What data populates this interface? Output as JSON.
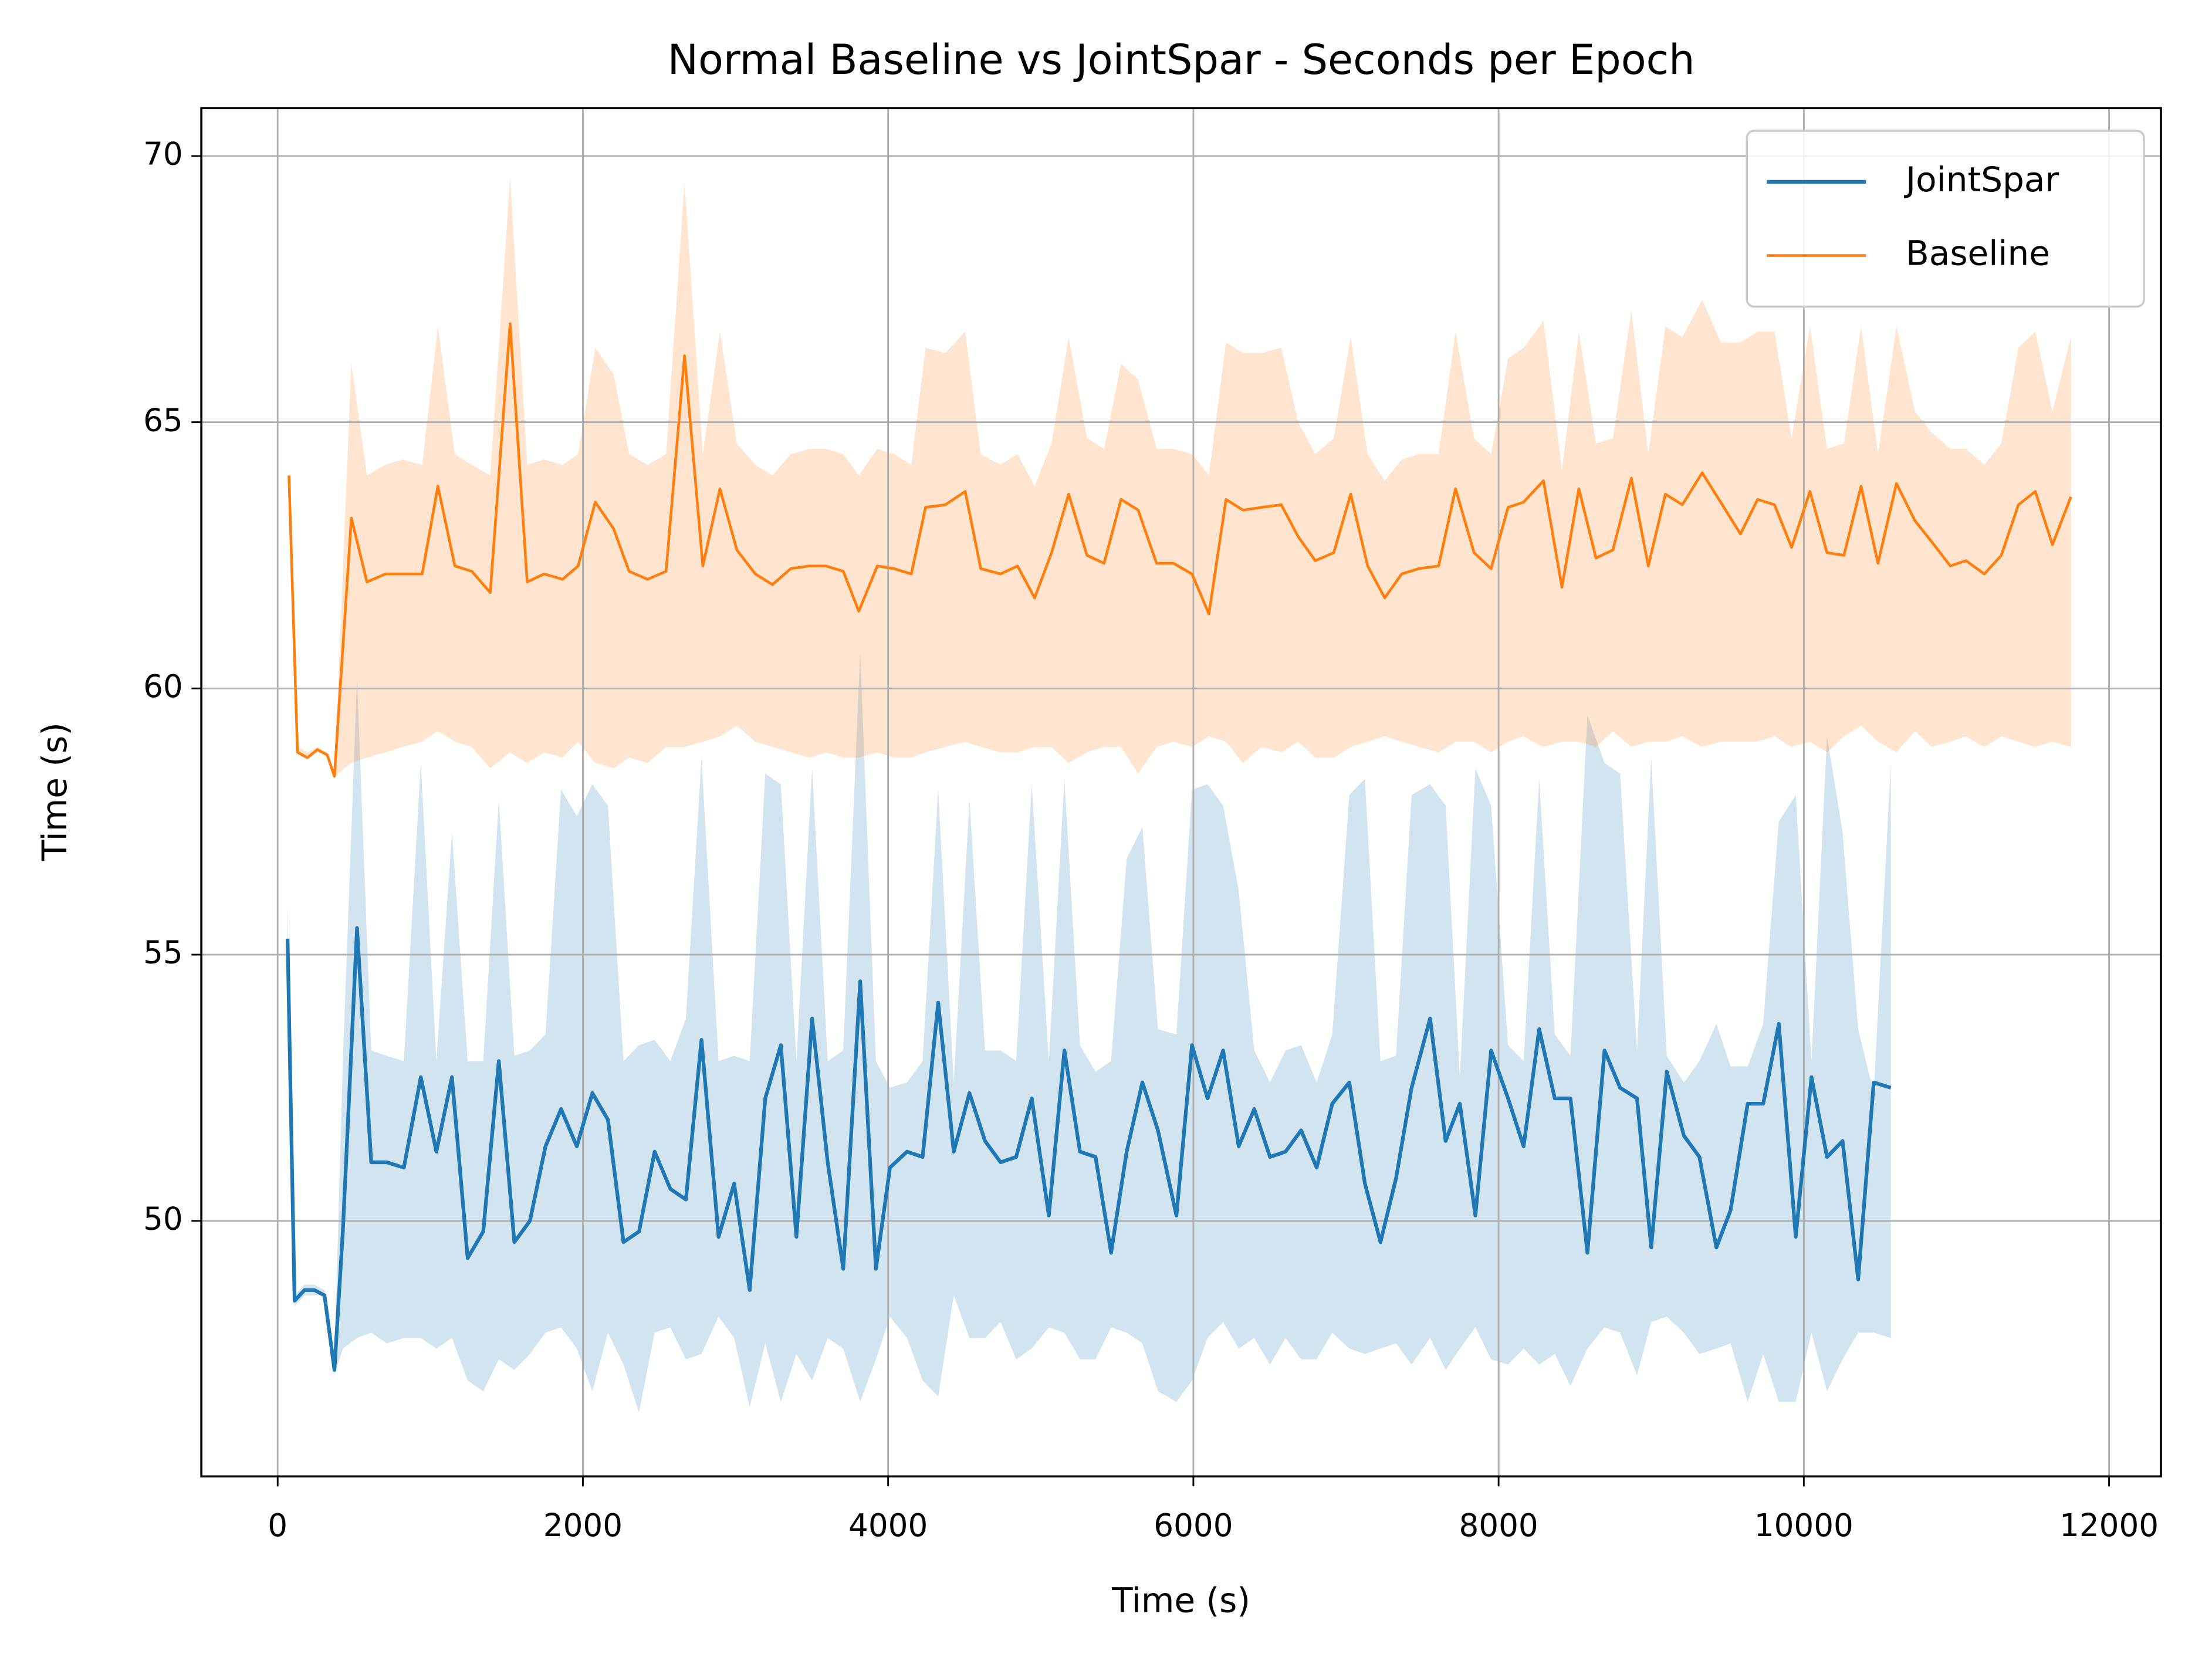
{
  "chart_data": {
    "type": "line",
    "title": "Normal Baseline vs JointSpar - Seconds per Epoch",
    "x_label": "Time (s)",
    "y_label": "Time (s)",
    "xlim": [
      -500,
      12340
    ],
    "ylim": [
      45.2,
      70.9
    ],
    "xticks": [
      0,
      2000,
      4000,
      6000,
      8000,
      10000,
      12000
    ],
    "yticks": [
      50,
      55,
      60,
      65,
      70
    ],
    "grid": true,
    "legend": "upper right",
    "series": [
      {
        "name": "JointSpar",
        "color": "#1f77b4",
        "x": [
          65,
          111,
          176,
          241,
          307,
          372,
          427,
          520,
          613,
          715,
          827,
          938,
          1040,
          1142,
          1245,
          1347,
          1449,
          1551,
          1653,
          1755,
          1857,
          1960,
          2062,
          2164,
          2266,
          2368,
          2470,
          2573,
          2675,
          2777,
          2889,
          2991,
          3093,
          3195,
          3297,
          3399,
          3502,
          3604,
          3706,
          3817,
          3920,
          4012,
          4124,
          4226,
          4328,
          4430,
          4533,
          4635,
          4737,
          4839,
          4941,
          5053,
          5155,
          5257,
          5359,
          5461,
          5563,
          5666,
          5768,
          5889,
          5991,
          6093,
          6195,
          6297,
          6399,
          6502,
          6604,
          6706,
          6808,
          6910,
          7022,
          7124,
          7226,
          7328,
          7430,
          7551,
          7653,
          7746,
          7848,
          7951,
          8062,
          8164,
          8266,
          8368,
          8471,
          8582,
          8694,
          8796,
          8907,
          9000,
          9102,
          9214,
          9316,
          9427,
          9520,
          9632,
          9734,
          9836,
          9947,
          10050,
          10152,
          10254,
          10356,
          10458,
          10570
        ],
        "values": [
          55.3,
          48.5,
          48.7,
          48.7,
          48.6,
          47.2,
          49.8,
          55.5,
          51.1,
          51.1,
          51.0,
          52.7,
          51.3,
          52.7,
          49.3,
          49.8,
          53.0,
          49.6,
          50.0,
          51.4,
          52.1,
          51.4,
          52.4,
          51.9,
          49.6,
          49.8,
          51.3,
          50.6,
          50.4,
          53.4,
          49.7,
          50.7,
          48.7,
          52.3,
          53.3,
          49.7,
          53.8,
          51.1,
          49.1,
          54.5,
          49.1,
          51.0,
          51.3,
          51.2,
          54.1,
          51.3,
          52.4,
          51.5,
          51.1,
          51.2,
          52.3,
          50.1,
          53.2,
          51.3,
          51.2,
          49.4,
          51.3,
          52.6,
          51.7,
          50.1,
          53.3,
          52.3,
          53.2,
          51.4,
          52.1,
          51.2,
          51.3,
          51.7,
          51.0,
          52.2,
          52.6,
          50.7,
          49.6,
          50.8,
          52.5,
          53.8,
          51.5,
          52.2,
          50.1,
          53.2,
          52.3,
          51.4,
          53.6,
          52.3,
          52.3,
          49.4,
          53.2,
          52.5,
          52.3,
          49.5,
          52.8,
          51.6,
          51.2,
          49.5,
          50.2,
          52.2,
          52.2,
          53.7,
          49.7,
          52.7,
          51.2,
          51.5,
          48.9,
          52.6,
          52.5
        ],
        "lower": [
          54.8,
          48.4,
          48.6,
          48.6,
          48.6,
          47.1,
          47.6,
          47.8,
          47.9,
          47.7,
          47.8,
          47.8,
          47.6,
          47.8,
          47.0,
          46.8,
          47.4,
          47.2,
          47.5,
          47.9,
          48.0,
          47.6,
          46.8,
          47.9,
          47.3,
          46.4,
          47.9,
          48.0,
          47.4,
          47.5,
          48.2,
          47.8,
          46.5,
          47.7,
          46.6,
          47.5,
          47.0,
          47.8,
          47.6,
          46.6,
          47.4,
          48.2,
          47.8,
          47.0,
          46.7,
          48.6,
          47.8,
          47.8,
          48.1,
          47.4,
          47.6,
          48.0,
          47.9,
          47.4,
          47.4,
          48.0,
          47.9,
          47.7,
          46.8,
          46.6,
          47.0,
          47.8,
          48.1,
          47.6,
          47.8,
          47.3,
          47.8,
          47.4,
          47.4,
          47.9,
          47.6,
          47.5,
          47.6,
          47.7,
          47.3,
          47.8,
          47.2,
          47.6,
          48.0,
          47.4,
          47.3,
          47.6,
          47.3,
          47.5,
          46.9,
          47.6,
          48.0,
          47.9,
          47.1,
          48.1,
          48.2,
          47.9,
          47.5,
          47.6,
          47.7,
          46.6,
          47.5,
          46.6,
          46.6,
          47.9,
          46.8,
          47.4,
          47.9,
          47.9,
          47.8
        ],
        "upper": [
          56.0,
          48.6,
          48.8,
          48.8,
          48.7,
          47.4,
          53.0,
          60.2,
          53.2,
          53.1,
          53.0,
          58.6,
          53.0,
          57.3,
          53.0,
          53.0,
          57.9,
          53.1,
          53.2,
          53.5,
          58.1,
          57.6,
          58.2,
          57.8,
          53.0,
          53.3,
          53.4,
          53.0,
          53.8,
          58.7,
          53.0,
          53.1,
          53.0,
          58.4,
          58.2,
          53.0,
          58.5,
          53.0,
          53.2,
          60.7,
          53.0,
          52.5,
          52.6,
          53.0,
          58.1,
          52.6,
          57.9,
          53.2,
          53.2,
          53.0,
          58.2,
          53.0,
          58.3,
          53.3,
          52.8,
          53.0,
          56.8,
          57.4,
          53.6,
          53.5,
          58.1,
          58.2,
          57.8,
          56.2,
          53.2,
          52.6,
          53.2,
          53.3,
          52.6,
          53.5,
          58.0,
          58.3,
          53.0,
          53.1,
          58.0,
          58.2,
          57.8,
          52.7,
          58.5,
          57.8,
          53.3,
          53.0,
          58.3,
          53.5,
          53.1,
          59.5,
          58.6,
          58.4,
          53.2,
          58.7,
          53.1,
          52.6,
          53.0,
          53.7,
          52.9,
          52.9,
          53.7,
          57.5,
          58.0,
          53.0,
          59.1,
          57.3,
          53.6,
          52.4,
          58.6
        ]
      },
      {
        "name": "Baseline",
        "color": "#ff7f0e",
        "x": [
          74,
          130,
          195,
          260,
          325,
          372,
          483,
          585,
          706,
          817,
          947,
          1050,
          1161,
          1272,
          1393,
          1523,
          1635,
          1746,
          1867,
          1969,
          2081,
          2201,
          2303,
          2424,
          2545,
          2666,
          2786,
          2898,
          3009,
          3130,
          3242,
          3362,
          3483,
          3594,
          3706,
          3808,
          3929,
          4040,
          4152,
          4245,
          4375,
          4505,
          4607,
          4737,
          4848,
          4960,
          5071,
          5183,
          5303,
          5415,
          5526,
          5638,
          5759,
          5870,
          5991,
          6102,
          6214,
          6325,
          6446,
          6576,
          6687,
          6799,
          6920,
          7031,
          7142,
          7254,
          7365,
          7477,
          7607,
          7718,
          7839,
          7951,
          8062,
          8164,
          8294,
          8415,
          8526,
          8638,
          8749,
          8870,
          8981,
          9093,
          9204,
          9334,
          9455,
          9585,
          9697,
          9808,
          9920,
          10040,
          10152,
          10263,
          10375,
          10486,
          10607,
          10728,
          10839,
          10960,
          11062,
          11183,
          11294,
          11406,
          11517,
          11629,
          11750
        ],
        "values": [
          64.0,
          58.8,
          58.7,
          58.85,
          58.75,
          58.35,
          63.2,
          62.0,
          62.15,
          62.15,
          62.15,
          63.8,
          62.3,
          62.2,
          61.8,
          66.85,
          62.0,
          62.15,
          62.05,
          62.3,
          63.5,
          63.0,
          62.2,
          62.05,
          62.2,
          66.25,
          62.3,
          63.75,
          62.6,
          62.15,
          61.95,
          62.25,
          62.3,
          62.3,
          62.2,
          61.45,
          62.3,
          62.25,
          62.15,
          63.4,
          63.45,
          63.7,
          62.25,
          62.15,
          62.3,
          61.7,
          62.55,
          63.65,
          62.5,
          62.35,
          63.55,
          63.35,
          62.35,
          62.35,
          62.15,
          61.4,
          63.55,
          63.35,
          63.4,
          63.45,
          62.85,
          62.4,
          62.55,
          63.65,
          62.3,
          61.7,
          62.15,
          62.25,
          62.3,
          63.75,
          62.55,
          62.25,
          63.4,
          63.5,
          63.9,
          61.9,
          63.75,
          62.45,
          62.6,
          63.95,
          62.3,
          63.65,
          63.45,
          64.05,
          63.5,
          62.9,
          63.55,
          63.45,
          62.65,
          63.7,
          62.55,
          62.5,
          63.8,
          62.35,
          63.85,
          63.15,
          62.75,
          62.3,
          62.4,
          62.15,
          62.5,
          63.45,
          63.7,
          62.7,
          63.6
        ],
        "lower": [
          64.0,
          58.8,
          58.7,
          58.85,
          58.75,
          58.35,
          58.6,
          58.7,
          58.8,
          58.9,
          59.0,
          59.2,
          59.0,
          58.9,
          58.5,
          58.8,
          58.6,
          58.8,
          58.7,
          59.0,
          58.6,
          58.5,
          58.7,
          58.6,
          58.9,
          58.9,
          59.0,
          59.1,
          59.3,
          59.0,
          58.9,
          58.8,
          58.7,
          58.8,
          58.7,
          58.7,
          58.8,
          58.7,
          58.7,
          58.8,
          58.9,
          59.0,
          58.9,
          58.8,
          58.8,
          58.9,
          58.9,
          58.6,
          58.8,
          58.9,
          58.9,
          58.4,
          58.9,
          59.0,
          58.9,
          59.1,
          59.0,
          58.6,
          58.9,
          58.8,
          59.0,
          58.7,
          58.7,
          58.9,
          59.0,
          59.1,
          59.0,
          58.9,
          58.8,
          59.0,
          59.0,
          58.8,
          59.0,
          59.1,
          58.9,
          59.0,
          59.0,
          58.9,
          59.2,
          58.9,
          59.0,
          59.0,
          59.1,
          58.9,
          59.0,
          59.0,
          59.0,
          59.1,
          58.9,
          59.0,
          58.8,
          59.1,
          59.3,
          59.0,
          58.8,
          59.2,
          58.9,
          59.0,
          59.1,
          58.9,
          59.1,
          59.0,
          58.9,
          59.0,
          58.9
        ],
        "upper": [
          64.0,
          58.9,
          58.8,
          58.9,
          58.8,
          58.4,
          66.1,
          64.0,
          64.2,
          64.3,
          64.2,
          66.8,
          64.4,
          64.2,
          64.0,
          69.6,
          64.2,
          64.3,
          64.2,
          64.4,
          66.4,
          65.9,
          64.4,
          64.2,
          64.4,
          69.5,
          64.4,
          66.7,
          64.6,
          64.2,
          64.0,
          64.4,
          64.5,
          64.5,
          64.4,
          64.0,
          64.5,
          64.4,
          64.2,
          66.4,
          66.3,
          66.7,
          64.4,
          64.2,
          64.4,
          63.8,
          64.6,
          66.6,
          64.7,
          64.5,
          66.1,
          65.8,
          64.5,
          64.5,
          64.4,
          64.0,
          66.5,
          66.3,
          66.3,
          66.4,
          65.0,
          64.4,
          64.7,
          66.6,
          64.4,
          63.9,
          64.3,
          64.4,
          64.4,
          66.7,
          64.7,
          64.4,
          66.2,
          66.4,
          66.9,
          64.1,
          66.7,
          64.6,
          64.7,
          67.1,
          64.4,
          66.8,
          66.6,
          67.3,
          66.5,
          66.5,
          66.7,
          66.7,
          64.7,
          66.8,
          64.5,
          64.6,
          66.8,
          64.4,
          66.8,
          65.2,
          64.8,
          64.5,
          64.5,
          64.2,
          64.6,
          66.4,
          66.7,
          65.2,
          66.6
        ]
      }
    ]
  }
}
